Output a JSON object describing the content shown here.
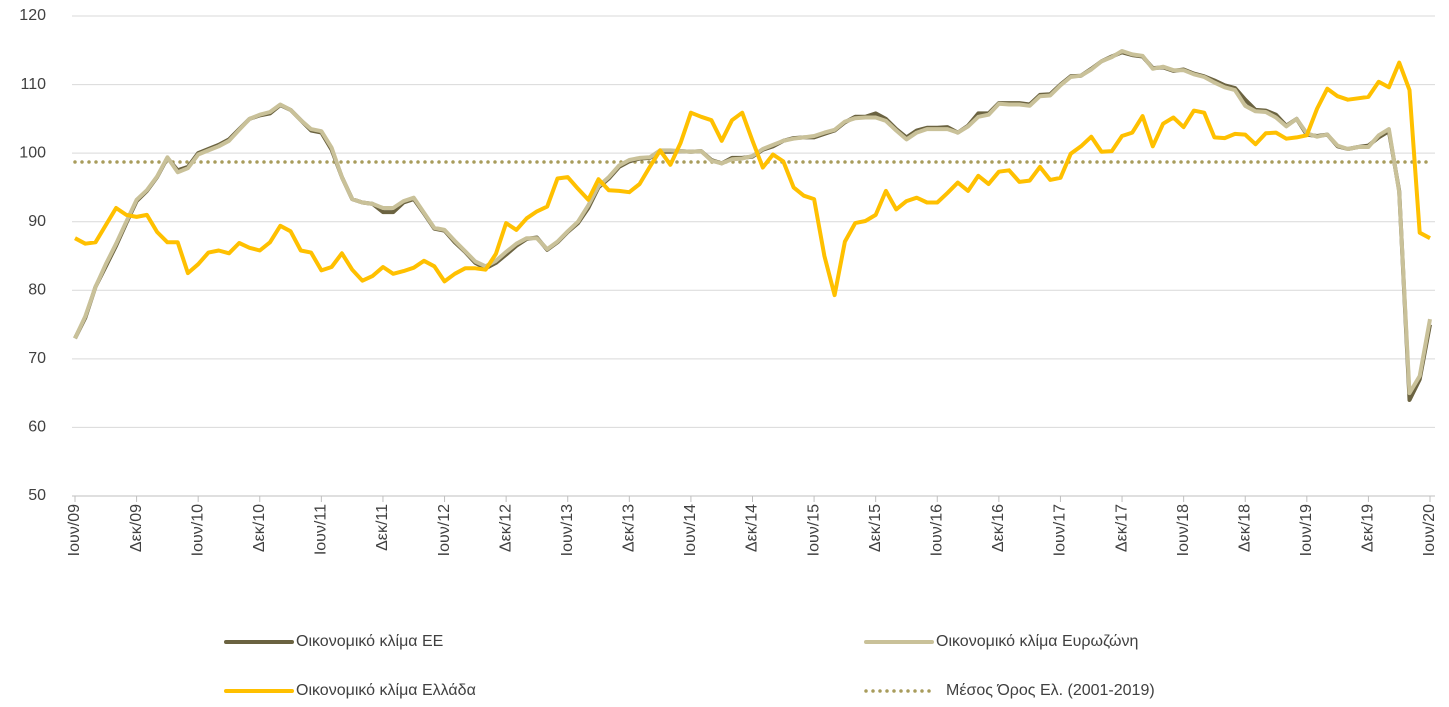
{
  "chart_data": {
    "type": "line",
    "categories": [
      "Ιουν/09",
      null,
      null,
      null,
      null,
      null,
      "Δεκ/09",
      null,
      null,
      null,
      null,
      null,
      "Ιουν/10",
      null,
      null,
      null,
      null,
      null,
      "Δεκ/10",
      null,
      null,
      null,
      null,
      null,
      "Ιουν/11",
      null,
      null,
      null,
      null,
      null,
      "Δεκ/11",
      null,
      null,
      null,
      null,
      null,
      "Ιουν/12",
      null,
      null,
      null,
      null,
      null,
      "Δεκ/12",
      null,
      null,
      null,
      null,
      null,
      "Ιουν/13",
      null,
      null,
      null,
      null,
      null,
      "Δεκ/13",
      null,
      null,
      null,
      null,
      null,
      "Ιουν/14",
      null,
      null,
      null,
      null,
      null,
      "Δεκ/14",
      null,
      null,
      null,
      null,
      null,
      "Ιουν/15",
      null,
      null,
      null,
      null,
      null,
      "Δεκ/15",
      null,
      null,
      null,
      null,
      null,
      "Ιουν/16",
      null,
      null,
      null,
      null,
      null,
      "Δεκ/16",
      null,
      null,
      null,
      null,
      null,
      "Ιουν/17",
      null,
      null,
      null,
      null,
      null,
      "Δεκ/17",
      null,
      null,
      null,
      null,
      null,
      "Ιουν/18",
      null,
      null,
      null,
      null,
      null,
      "Δεκ/18",
      null,
      null,
      null,
      null,
      null,
      "Ιουν/19",
      null,
      null,
      null,
      null,
      null,
      "Δεκ/19",
      null,
      null,
      null,
      null,
      null,
      "Ιουν/20"
    ],
    "series": [
      {
        "name": "Οικονομικό κλίμα ΕΕ",
        "color": "#6b6341",
        "values": [
          73,
          76,
          80.5,
          83.5,
          86.5,
          89.8,
          93,
          94.5,
          96.5,
          99.3,
          97.5,
          98,
          100,
          100.6,
          101.2,
          102,
          103.5,
          105,
          105.5,
          105.8,
          107,
          106.3,
          104.8,
          103.3,
          103,
          100.5,
          96.5,
          93.3,
          92.8,
          92.6,
          91.4,
          91.4,
          92.8,
          93.3,
          91.2,
          89,
          88.7,
          87,
          85.6,
          84,
          83.2,
          84,
          85.2,
          86.5,
          87.5,
          87.7,
          85.9,
          87,
          88.5,
          89.8,
          92,
          95,
          96.3,
          98,
          98.8,
          99.2,
          99.3,
          100.2,
          100.2,
          100.3,
          100.2,
          100.3,
          99,
          98.5,
          99.3,
          99.3,
          99.5,
          100.5,
          101,
          101.8,
          102.2,
          102.3,
          102.3,
          102.8,
          103.3,
          104.5,
          105.3,
          105.3,
          105.8,
          105,
          103.5,
          102.3,
          103.3,
          103.7,
          103.7,
          103.8,
          103,
          104,
          105.8,
          105.8,
          107.3,
          107.3,
          107.3,
          107.1,
          108.5,
          108.6,
          110,
          111.2,
          111.3,
          112.3,
          113.4,
          114.1,
          114.7,
          114.3,
          114.1,
          112.4,
          112.5,
          112,
          112.2,
          111.6,
          111.2,
          110.6,
          109.9,
          109.5,
          107.8,
          106.3,
          106.2,
          105.6,
          104,
          105,
          102.7,
          102.5,
          102.7,
          101,
          100.6,
          100.9,
          101.1,
          102.3,
          103.2,
          94.5,
          64,
          67,
          75
        ]
      },
      {
        "name": "Οικονομικό κλίμα Ευρωζώνη",
        "color": "#c9c199",
        "values": [
          73,
          76.2,
          80.5,
          83.8,
          86.8,
          90,
          93.2,
          94.6,
          96.6,
          99.4,
          97.2,
          97.8,
          99.8,
          100.4,
          101,
          101.8,
          103.4,
          105,
          105.6,
          106,
          107.1,
          106.3,
          104.8,
          103.5,
          103.2,
          100.8,
          96.5,
          93.3,
          92.8,
          92.6,
          92,
          92,
          93,
          93.5,
          91.3,
          89.1,
          88.8,
          87.2,
          85.7,
          84.2,
          83.5,
          84.3,
          85.6,
          86.8,
          87.6,
          87.6,
          86,
          87.1,
          88.6,
          90,
          92.4,
          95.2,
          96.5,
          98.2,
          99,
          99.3,
          99.4,
          100.4,
          100.4,
          100.3,
          100.2,
          100.3,
          98.9,
          98.5,
          99.1,
          99.2,
          99.6,
          100.6,
          101.2,
          101.8,
          102.1,
          102.3,
          102.5,
          103,
          103.4,
          104.6,
          105.1,
          105.2,
          105.2,
          104.7,
          103.3,
          102,
          103,
          103.5,
          103.5,
          103.5,
          103,
          103.9,
          105.3,
          105.6,
          107.2,
          107.1,
          107.1,
          106.9,
          108.3,
          108.4,
          109.9,
          111.1,
          111.3,
          112.2,
          113.4,
          114,
          114.9,
          114.4,
          114.2,
          112.3,
          112.6,
          112.1,
          112.1,
          111.5,
          111.1,
          110.3,
          109.6,
          109.2,
          106.9,
          106.1,
          106,
          105.2,
          103.9,
          105,
          102.9,
          102.4,
          102.7,
          101.1,
          100.6,
          100.9,
          100.9,
          102.6,
          103.5,
          94.3,
          65,
          67.5,
          75.8
        ]
      },
      {
        "name": "Οικονομικό κλίμα Ελλάδα",
        "color": "#ffc000",
        "values": [
          87.6,
          86.8,
          87,
          89.5,
          92,
          91,
          90.7,
          91,
          88.5,
          87,
          87,
          82.5,
          83.8,
          85.5,
          85.8,
          85.4,
          86.9,
          86.2,
          85.8,
          87,
          89.4,
          88.6,
          85.8,
          85.5,
          82.9,
          83.4,
          85.4,
          83,
          81.4,
          82.1,
          83.4,
          82.4,
          82.8,
          83.3,
          84.3,
          83.5,
          81.3,
          82.4,
          83.2,
          83.2,
          83,
          85.3,
          89.8,
          88.8,
          90.5,
          91.5,
          92.2,
          96.3,
          96.5,
          94.8,
          93.2,
          96.2,
          94.6,
          94.5,
          94.3,
          95.5,
          98,
          100.4,
          98.3,
          101.5,
          105.9,
          105.3,
          104.8,
          101.8,
          104.8,
          105.9,
          101.8,
          97.9,
          99.8,
          98.8,
          95,
          93.8,
          93.3,
          85,
          79.3,
          87.1,
          89.8,
          90.1,
          91,
          94.5,
          91.8,
          93,
          93.5,
          92.8,
          92.8,
          94.2,
          95.7,
          94.5,
          96.7,
          95.5,
          97.3,
          97.5,
          95.8,
          96,
          98,
          96.1,
          96.4,
          99.9,
          101,
          102.4,
          100.2,
          100.3,
          102.5,
          103,
          105.4,
          101,
          104.3,
          105.2,
          103.8,
          106.2,
          105.9,
          102.3,
          102.2,
          102.8,
          102.7,
          101.3,
          102.9,
          103,
          102.1,
          102.3,
          102.6,
          106.5,
          109.4,
          108.3,
          107.8,
          108,
          108.2,
          110.4,
          109.6,
          113.2,
          109.2,
          88.4,
          87.6
        ]
      }
    ],
    "reference_lines": [
      {
        "name": "Μέσος Όρος Ελ. (2001-2019)",
        "value": 98.7,
        "color": "#a89c5c",
        "style": "dotted"
      }
    ],
    "ylim": [
      50,
      120
    ],
    "yticks": [
      50,
      60,
      70,
      80,
      90,
      100,
      110,
      120
    ],
    "grid": true,
    "legend": "bottom"
  }
}
